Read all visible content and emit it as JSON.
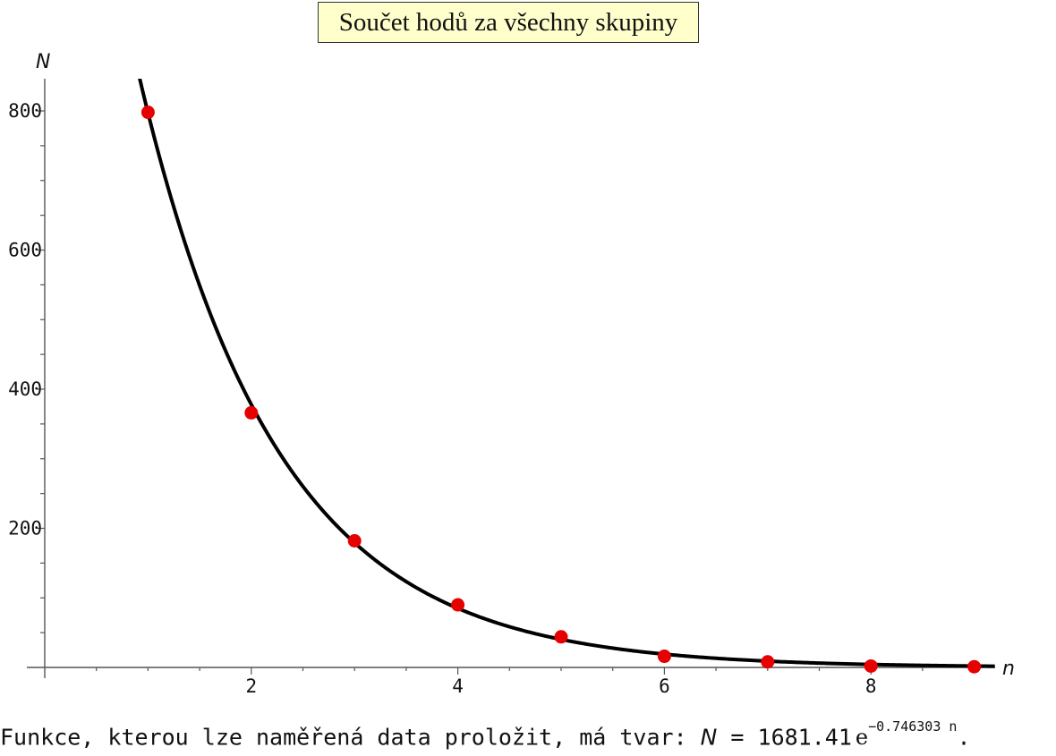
{
  "chart_data": {
    "type": "scatter",
    "title": "Součet hodů za všechny skupiny",
    "xlabel": "n",
    "ylabel": "N",
    "xlim": [
      0,
      9.3
    ],
    "ylim": [
      0,
      850
    ],
    "x_ticks": [
      2,
      4,
      6,
      8
    ],
    "y_ticks": [
      200,
      400,
      600,
      800
    ],
    "grid": false,
    "points": [
      {
        "x": 1,
        "y": 798
      },
      {
        "x": 2,
        "y": 366
      },
      {
        "x": 3,
        "y": 182
      },
      {
        "x": 4,
        "y": 90
      },
      {
        "x": 5,
        "y": 44
      },
      {
        "x": 6,
        "y": 16
      },
      {
        "x": 7,
        "y": 8
      },
      {
        "x": 8,
        "y": 2
      },
      {
        "x": 9,
        "y": 1
      }
    ],
    "fit": {
      "a": 1681.41,
      "b": -0.746303,
      "x_range": [
        0.9,
        9.2
      ]
    },
    "colors": {
      "points": "#e60000",
      "curve": "#000000"
    }
  },
  "footer": {
    "text": "Funkce, kterou lze naměřená data proložit, má tvar: ",
    "var": "N",
    "eq": " = 1681.41",
    "e": "e",
    "exponent": "−0.746303 n",
    "end": "."
  }
}
